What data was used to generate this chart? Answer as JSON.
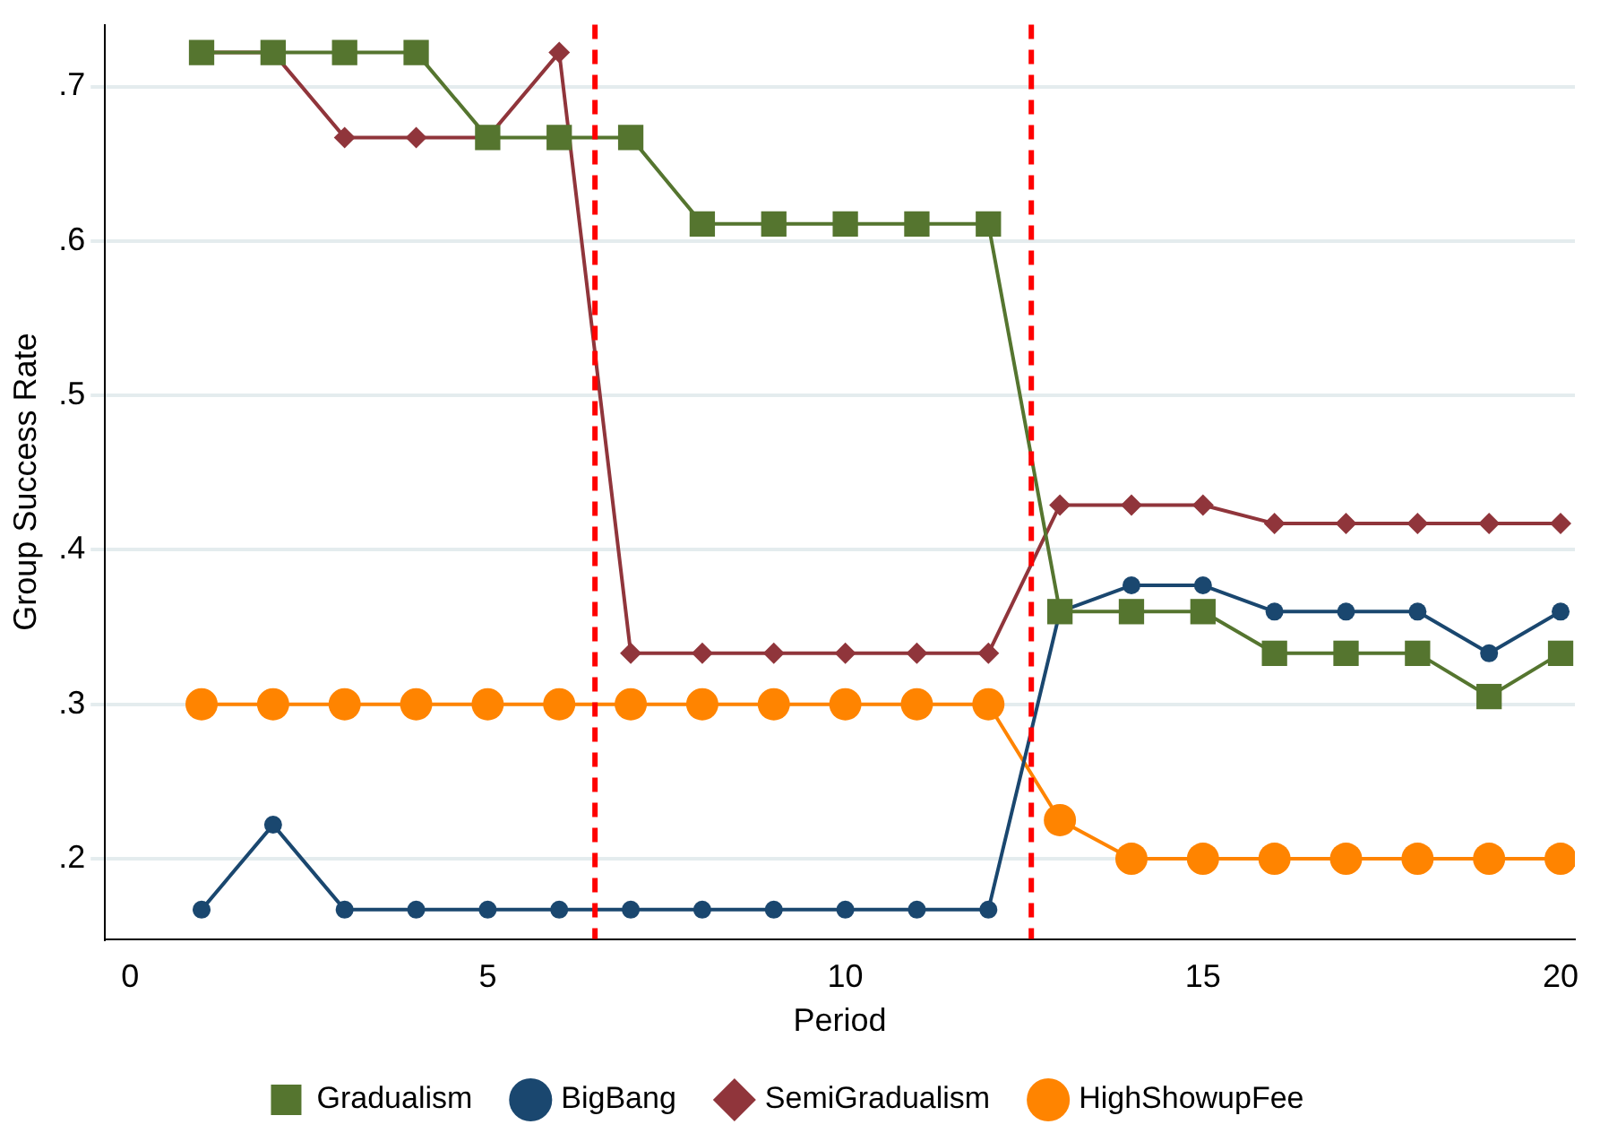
{
  "chart_data": {
    "type": "line",
    "xlabel": "Period",
    "ylabel": "Group Success Rate",
    "x": [
      1,
      2,
      3,
      4,
      5,
      6,
      7,
      8,
      9,
      10,
      11,
      12,
      13,
      14,
      15,
      16,
      17,
      18,
      19,
      20
    ],
    "series": [
      {
        "name": "BigBang",
        "color": "#1a476f",
        "marker": "circle",
        "values": [
          0.167,
          0.222,
          0.167,
          0.167,
          0.167,
          0.167,
          0.167,
          0.167,
          0.167,
          0.167,
          0.167,
          0.167,
          0.36,
          0.377,
          0.377,
          0.36,
          0.36,
          0.36,
          0.333,
          0.36
        ]
      },
      {
        "name": "SemiGradualism",
        "color": "#90353b",
        "marker": "diamond",
        "values": [
          0.722,
          0.722,
          0.667,
          0.667,
          0.667,
          0.722,
          0.333,
          0.333,
          0.333,
          0.333,
          0.333,
          0.333,
          0.429,
          0.429,
          0.429,
          0.417,
          0.417,
          0.417,
          0.417,
          0.417
        ]
      },
      {
        "name": "Gradualism",
        "color": "#55752f",
        "marker": "square",
        "values": [
          0.722,
          0.722,
          0.722,
          0.722,
          0.667,
          0.667,
          0.667,
          0.611,
          0.611,
          0.611,
          0.611,
          0.611,
          0.36,
          0.36,
          0.36,
          0.333,
          0.333,
          0.333,
          0.305,
          0.333
        ]
      },
      {
        "name": "HighShowupFee",
        "color": "#ff8400",
        "marker": "circle",
        "values": [
          0.3,
          0.3,
          0.3,
          0.3,
          0.3,
          0.3,
          0.3,
          0.3,
          0.3,
          0.3,
          0.3,
          0.3,
          0.225,
          0.2,
          0.2,
          0.2,
          0.2,
          0.2,
          0.2,
          0.2
        ]
      }
    ],
    "xlim": [
      -0.35,
      20.2
    ],
    "xticks": [
      0,
      5,
      10,
      15,
      20
    ],
    "ylim": [
      0.148,
      0.74
    ],
    "yticks": [
      {
        "value": 0.2,
        "label": ".2"
      },
      {
        "value": 0.3,
        "label": ".3"
      },
      {
        "value": 0.4,
        "label": ".4"
      },
      {
        "value": 0.5,
        "label": ".5"
      },
      {
        "value": 0.6,
        "label": ".6"
      },
      {
        "value": 0.7,
        "label": ".7"
      }
    ],
    "ref_lines": [
      {
        "axis": "x",
        "value": 6.5,
        "color": "#ff0000",
        "line_style": "dashed"
      },
      {
        "axis": "x",
        "value": 12.6,
        "color": "#ff0000",
        "line_style": "dashed"
      }
    ],
    "grid": "y",
    "legend": "bottom",
    "line_style": "solid"
  }
}
